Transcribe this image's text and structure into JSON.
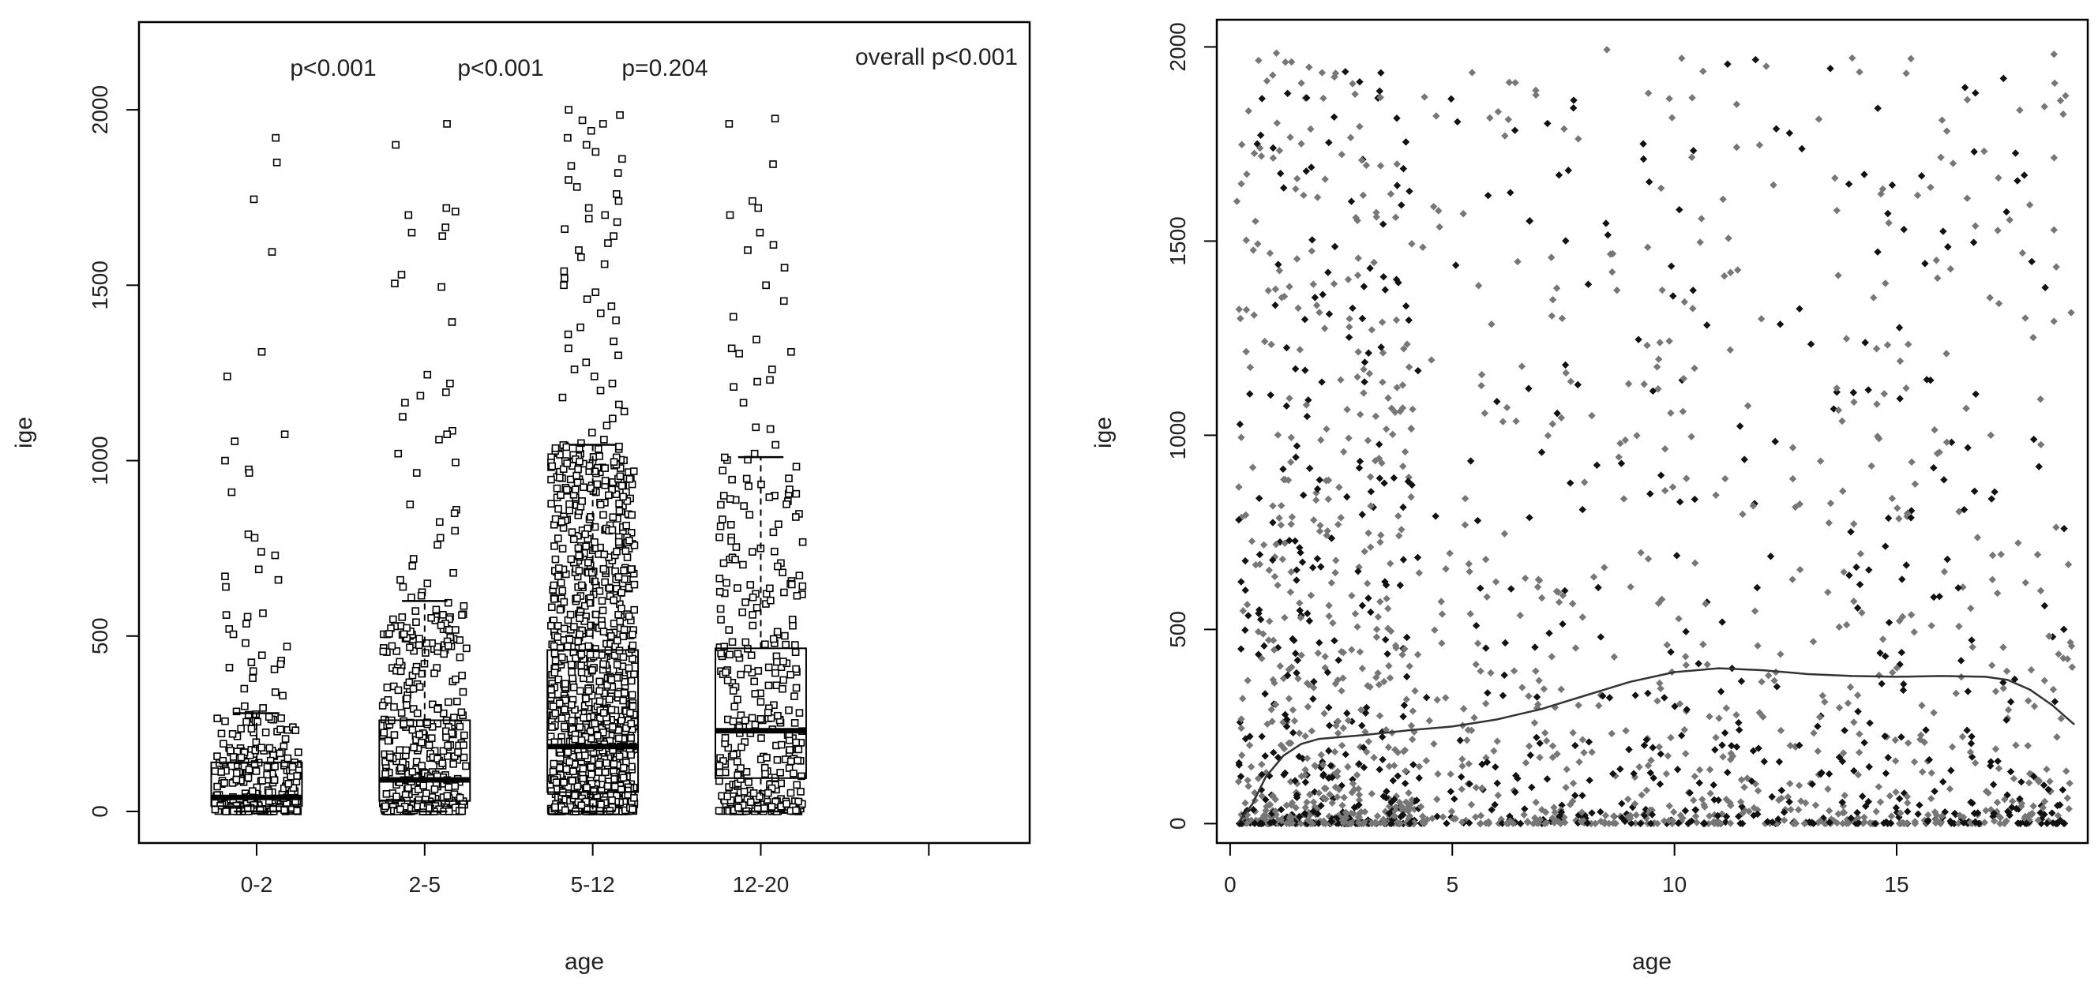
{
  "chart_data": [
    {
      "type": "box",
      "title": "",
      "xlabel": "age",
      "ylabel": "ige",
      "categories": [
        "0-2",
        "2-5",
        "5-12",
        "12-20"
      ],
      "ylim": [
        -90,
        2250
      ],
      "y_ticks": [
        0,
        500,
        1000,
        1500,
        2000
      ],
      "x_positions": [
        1,
        2,
        3,
        4
      ],
      "xlim": [
        0.3,
        5.6
      ],
      "extra_x_tick": 5,
      "boxes": [
        {
          "category": "0-2",
          "whisker_low": 0,
          "q1": 15,
          "median": 40,
          "q3": 140,
          "whisker_high": 280,
          "n_points": 240
        },
        {
          "category": "2-5",
          "whisker_low": 0,
          "q1": 30,
          "median": 90,
          "q3": 260,
          "whisker_high": 600,
          "n_points": 380
        },
        {
          "category": "5-12",
          "whisker_low": 0,
          "q1": 55,
          "median": 185,
          "q3": 460,
          "whisker_high": 1045,
          "n_points": 1100
        },
        {
          "category": "12-20",
          "whisker_low": 0,
          "q1": 95,
          "median": 230,
          "q3": 465,
          "whisker_high": 1010,
          "n_points": 320
        }
      ],
      "outliers": [
        {
          "category": "0-2",
          "values": [
            1920,
            1850,
            1745,
            1595,
            1310,
            1240,
            1075,
            1055,
            1000,
            975,
            965,
            910,
            790,
            780,
            740,
            730,
            690,
            670,
            660,
            640,
            565,
            560,
            555,
            535,
            520,
            505,
            480,
            470,
            445,
            430,
            425,
            420,
            410,
            405,
            400,
            380,
            350,
            340,
            330,
            300,
            295,
            285
          ]
        },
        {
          "category": "2-5",
          "values": [
            1960,
            1900,
            1720,
            1710,
            1700,
            1665,
            1650,
            1640,
            1530,
            1505,
            1495,
            1395,
            1245,
            1220,
            1195,
            1185,
            1165,
            1125,
            1085,
            1075,
            1060,
            1020,
            995,
            965,
            875,
            860,
            850,
            825,
            800,
            780,
            760,
            720,
            700,
            680,
            660,
            650,
            640,
            625,
            615,
            610
          ]
        },
        {
          "category": "5-12",
          "values": [
            2000,
            1985,
            1970,
            1960,
            1940,
            1920,
            1900,
            1880,
            1860,
            1840,
            1820,
            1800,
            1780,
            1760,
            1740,
            1720,
            1700,
            1690,
            1680,
            1660,
            1640,
            1620,
            1600,
            1580,
            1560,
            1540,
            1520,
            1500,
            1480,
            1460,
            1440,
            1420,
            1400,
            1380,
            1360,
            1340,
            1320,
            1300,
            1280,
            1260,
            1240,
            1220,
            1200,
            1180,
            1160,
            1140,
            1120,
            1100,
            1080,
            1060,
            1050
          ]
        },
        {
          "category": "12-20",
          "values": [
            1975,
            1960,
            1845,
            1740,
            1720,
            1700,
            1650,
            1615,
            1600,
            1550,
            1500,
            1455,
            1410,
            1345,
            1320,
            1310,
            1305,
            1260,
            1230,
            1225,
            1210,
            1165,
            1095,
            1090,
            1045,
            1020
          ]
        }
      ],
      "annotations": [
        "p<0.001",
        "p<0.001",
        "p=0.204",
        "overall p<0.001"
      ]
    },
    {
      "type": "scatter",
      "title": "",
      "xlabel": "age",
      "ylabel": "ige",
      "xlim": [
        -0.3,
        19.3
      ],
      "ylim": [
        -50,
        2070
      ],
      "x_ticks": [
        0,
        5,
        10,
        15
      ],
      "y_ticks": [
        0,
        500,
        1000,
        1500,
        2000
      ],
      "point_count": 2000,
      "smooth_line": {
        "x": [
          0.2,
          0.5,
          0.8,
          1.2,
          1.6,
          2,
          3,
          4,
          5,
          6,
          7,
          8,
          9,
          10,
          11,
          12,
          13,
          14,
          15,
          16,
          17,
          17.5,
          18,
          18.5,
          19
        ],
        "y": [
          5,
          50,
          120,
          175,
          205,
          218,
          228,
          240,
          250,
          268,
          295,
          330,
          365,
          390,
          400,
          395,
          385,
          380,
          378,
          380,
          378,
          370,
          345,
          305,
          255
        ]
      }
    }
  ]
}
